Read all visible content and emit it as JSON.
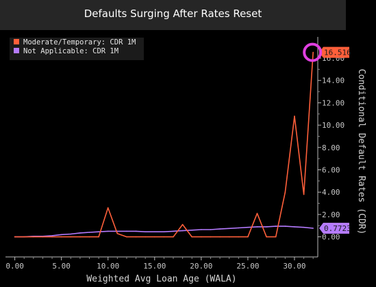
{
  "title": "Defaults Surging After Rates Reset",
  "colors": {
    "background": "#000000",
    "title_bar": "#262626",
    "plot_area": "#000000",
    "moderate": "#ff5f3a",
    "not_applicable": "#b57bff",
    "highlight_circle": "#e040e0"
  },
  "chart_data": {
    "type": "line",
    "title": "Defaults Surging After Rates Reset",
    "xlabel": "Weighted Avg Loan Age (WALA)",
    "ylabel": "Conditional Default Rates (CDR)",
    "xlim": [
      -1,
      32.5
    ],
    "ylim": [
      -1.8,
      17.9
    ],
    "x_ticks": [
      "0.00",
      "5.00",
      "10.00",
      "15.00",
      "20.00",
      "25.00",
      "30.00"
    ],
    "x_tick_values": [
      0,
      5,
      10,
      15,
      20,
      25,
      30
    ],
    "y_ticks": [
      "0.00",
      "2.00",
      "4.00",
      "6.00",
      "8.00",
      "10.00",
      "12.00",
      "14.00",
      "16.00"
    ],
    "y_tick_values": [
      0,
      2,
      4,
      6,
      8,
      10,
      12,
      14,
      16
    ],
    "legend_position": "top-left",
    "grid": false,
    "series": [
      {
        "name": "Moderate/Temporary: CDR 1M",
        "color": "#ff5f3a",
        "last_value_label": "16.516",
        "x": [
          0,
          1,
          2,
          3,
          4,
          5,
          6,
          7,
          8,
          9,
          10,
          11,
          12,
          13,
          14,
          15,
          16,
          17,
          18,
          19,
          20,
          21,
          22,
          23,
          24,
          25,
          26,
          27,
          28,
          29,
          30,
          31,
          32
        ],
        "y": [
          0,
          0,
          0,
          0,
          0,
          0,
          0,
          0,
          0,
          0,
          2.6,
          0.3,
          0,
          0,
          0,
          0,
          0,
          0,
          1.1,
          0,
          0,
          0,
          0,
          0,
          0,
          0,
          2.1,
          0,
          0,
          4.0,
          10.8,
          3.8,
          16.516
        ]
      },
      {
        "name": "Not Applicable: CDR 1M",
        "color": "#b57bff",
        "last_value_label": "0.7723",
        "x": [
          0,
          1,
          2,
          3,
          4,
          5,
          6,
          7,
          8,
          9,
          10,
          11,
          12,
          13,
          14,
          15,
          16,
          17,
          18,
          19,
          20,
          21,
          22,
          23,
          24,
          25,
          26,
          27,
          28,
          29,
          30,
          31,
          32
        ],
        "y": [
          0.0,
          0.0,
          0.05,
          0.05,
          0.1,
          0.2,
          0.25,
          0.35,
          0.4,
          0.45,
          0.5,
          0.5,
          0.5,
          0.5,
          0.45,
          0.45,
          0.45,
          0.5,
          0.55,
          0.6,
          0.65,
          0.65,
          0.7,
          0.75,
          0.8,
          0.85,
          0.9,
          0.9,
          0.95,
          0.95,
          0.9,
          0.85,
          0.7723
        ]
      }
    ]
  }
}
